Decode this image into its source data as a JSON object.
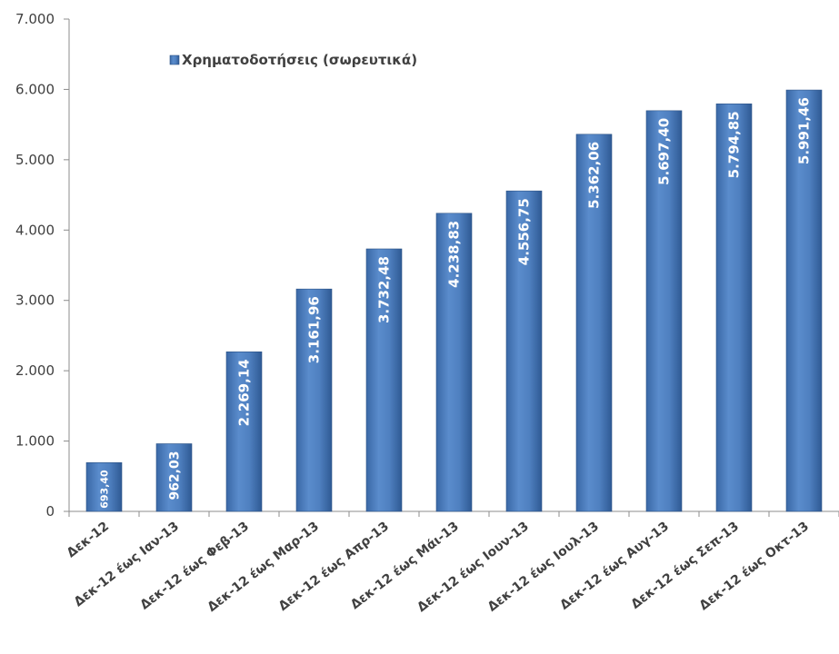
{
  "chart_data": {
    "type": "bar",
    "categories": [
      "Δεκ-12",
      "Δεκ-12 έως Ιαν-13",
      "Δεκ-12 έως Φεβ-13",
      "Δεκ-12 έως Μαρ-13",
      "Δεκ-12 έως Απρ-13",
      "Δεκ-12 έως Μάι-13",
      "Δεκ-12 έως Ιουν-13",
      "Δεκ-12 έως Ιουλ-13",
      "Δεκ-12 έως Αυγ-13",
      "Δεκ-12 έως Σεπ-13",
      "Δεκ-12 έως Οκτ-13"
    ],
    "series": [
      {
        "name": "Χρηματοδοτήσεις (σωρευτικά)",
        "values": [
          693.4,
          962.03,
          2269.14,
          3161.96,
          3732.48,
          4238.83,
          4556.75,
          5362.06,
          5697.4,
          5794.85,
          5991.46
        ],
        "data_labels": [
          "693,40",
          "962,03",
          "2.269,14",
          "3.161,96",
          "3.732,48",
          "4.238,83",
          "4.556,75",
          "5.362,06",
          "5.697,40",
          "5.794,85",
          "5.991,46"
        ],
        "color": "#4f81bd"
      }
    ],
    "ylim": [
      0,
      7000
    ],
    "yticks": [
      0,
      1000,
      2000,
      3000,
      4000,
      5000,
      6000,
      7000
    ],
    "ytick_labels": [
      "0",
      "1.000",
      "2.000",
      "3.000",
      "4.000",
      "5.000",
      "6.000",
      "7.000"
    ],
    "grid": false,
    "legend_position": "top-left",
    "title": "",
    "xlabel": "",
    "ylabel": ""
  }
}
